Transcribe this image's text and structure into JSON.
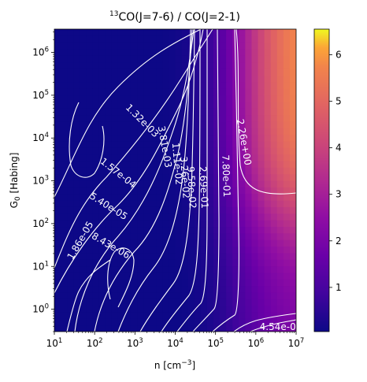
{
  "chart_data": {
    "type": "heatmap",
    "title": {
      "prefix": "13",
      "main": "CO(J=7-6) / CO(J=2-1)"
    },
    "xlabel": {
      "main": "n [cm",
      "sup": "−3",
      "suffix": "]"
    },
    "ylabel": {
      "main": "G",
      "sub": "0",
      "suffix": " [Habing]"
    },
    "x_scale": "log",
    "y_scale": "log",
    "xlim": [
      10,
      10000000
    ],
    "ylim": [
      0.3,
      3500000
    ],
    "x_ticks": [
      {
        "value": 10,
        "base": "10",
        "exp": "1"
      },
      {
        "value": 100,
        "base": "10",
        "exp": "2"
      },
      {
        "value": 1000,
        "base": "10",
        "exp": "3"
      },
      {
        "value": 10000,
        "base": "10",
        "exp": "4"
      },
      {
        "value": 100000,
        "base": "10",
        "exp": "5"
      },
      {
        "value": 1000000,
        "base": "10",
        "exp": "6"
      },
      {
        "value": 10000000,
        "base": "10",
        "exp": "7"
      }
    ],
    "y_ticks": [
      {
        "value": 1,
        "base": "10",
        "exp": "0"
      },
      {
        "value": 10,
        "base": "10",
        "exp": "1"
      },
      {
        "value": 100,
        "base": "10",
        "exp": "2"
      },
      {
        "value": 1000,
        "base": "10",
        "exp": "3"
      },
      {
        "value": 10000,
        "base": "10",
        "exp": "4"
      },
      {
        "value": 100000,
        "base": "10",
        "exp": "5"
      },
      {
        "value": 1000000,
        "base": "10",
        "exp": "6"
      }
    ],
    "colormap": "plasma",
    "colorbar": {
      "range": [
        0.05,
        6.55
      ],
      "ticks": [
        "1",
        "2",
        "3",
        "4",
        "5",
        "6"
      ]
    },
    "contour_labels": [
      {
        "text": "1.86e-05",
        "x": 45,
        "y": 40,
        "angle": -60
      },
      {
        "text": "8.43e-06",
        "x": 250,
        "y": 30,
        "angle": 30
      },
      {
        "text": "5.40e-05",
        "x": 220,
        "y": 250,
        "angle": 32
      },
      {
        "text": "1.57e-04",
        "x": 380,
        "y": 1500,
        "angle": 38
      },
      {
        "text": "1.32e-03",
        "x": 1500,
        "y": 25000,
        "angle": 45
      },
      {
        "text": "3.81e-03",
        "x": 5400,
        "y": 6200,
        "angle": 80
      },
      {
        "text": "1.11e-02",
        "x": 11000,
        "y": 2500,
        "angle": 85
      },
      {
        "text": "3.26e-02",
        "x": 17000,
        "y": 1200,
        "angle": 86
      },
      {
        "text": "9.58e-02",
        "x": 25000,
        "y": 700,
        "angle": 87
      },
      {
        "text": "2.69e-01",
        "x": 50000,
        "y": 700,
        "angle": 87
      },
      {
        "text": "7.80e-01",
        "x": 180000,
        "y": 1300,
        "angle": 88
      },
      {
        "text": "2.26e+00",
        "x": 500000,
        "y": 8000,
        "angle": 80
      },
      {
        "text": "4.54e-0",
        "x": 3500000,
        "y": 0.38,
        "angle": 0
      }
    ]
  }
}
